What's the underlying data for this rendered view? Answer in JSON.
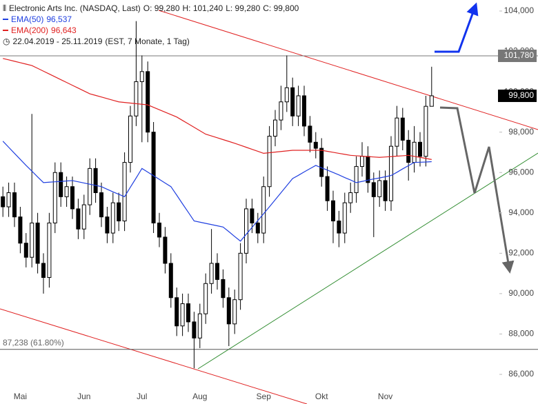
{
  "chart_data": {
    "type": "candlestick",
    "title": "Electronic Arts Inc. (NASDAQ, Last)",
    "ohlc_labels": [
      "O: 99,280",
      "H: 101,240",
      "L: 99,280",
      "C: 99,800"
    ],
    "date_range": "22.04.2019 - 25.11.2019",
    "period": "(EST, 7 Monate, 1 Tag)",
    "categories": [
      null,
      null,
      null,
      "Mai",
      null,
      null,
      null,
      null,
      null,
      null,
      null,
      null,
      null,
      null,
      "Jun",
      null,
      null,
      null,
      null,
      null,
      null,
      null,
      null,
      null,
      "Jul",
      null,
      null,
      null,
      null,
      null,
      null,
      null,
      null,
      null,
      "Aug",
      null,
      null,
      null,
      null,
      null,
      null,
      null,
      null,
      null,
      null,
      "Sep",
      null,
      null,
      null,
      null,
      null,
      null,
      null,
      null,
      null,
      "Okt",
      null,
      null,
      null,
      null,
      null,
      null,
      null,
      null,
      null,
      null,
      "Nov",
      null,
      null,
      null,
      null,
      null,
      null,
      null,
      null
    ],
    "candles": {
      "up_color": "#ffffff",
      "down_color": "#000000",
      "open": [
        94800,
        94300,
        95000,
        93800,
        92500,
        91800,
        93500,
        91500,
        90800,
        93500,
        96000,
        94800,
        95300,
        94200,
        93200,
        94400,
        96200,
        95000,
        93800,
        93000,
        94500,
        93600,
        96500,
        98800,
        100500,
        101000,
        98000,
        93500,
        92800,
        91500,
        89800,
        88400,
        89500,
        88600,
        87800,
        89000,
        90500,
        91500,
        90700,
        89800,
        88500,
        89700,
        92000,
        94200,
        93500,
        93000,
        95300,
        97800,
        98600,
        99500,
        100200,
        98800,
        99800,
        98300,
        97500,
        97200,
        95800,
        94600,
        93600,
        93000,
        94500,
        95000,
        96300,
        96800,
        95500,
        94800,
        95600,
        94600,
        97300,
        98700,
        97600,
        96500,
        97500,
        96800,
        99280
      ],
      "high": [
        95300,
        95500,
        95500,
        94300,
        93000,
        98900,
        94000,
        92000,
        94000,
        96500,
        96500,
        95800,
        95800,
        94700,
        94900,
        96700,
        96700,
        95500,
        94300,
        95000,
        95000,
        97000,
        99300,
        103500,
        101800,
        101500,
        98500,
        94000,
        93300,
        92000,
        90300,
        90000,
        90000,
        89100,
        89500,
        91000,
        93200,
        92000,
        91200,
        90300,
        90200,
        92500,
        94700,
        94700,
        94000,
        95800,
        98300,
        99100,
        100300,
        101800,
        100700,
        100300,
        100300,
        98800,
        98000,
        97700,
        96300,
        95100,
        94100,
        95000,
        95500,
        96800,
        97500,
        97300,
        96000,
        96100,
        96100,
        97800,
        99300,
        99200,
        98100,
        98300,
        98000,
        99800,
        101240
      ],
      "low": [
        93800,
        93800,
        93300,
        92000,
        91300,
        91300,
        91000,
        90000,
        90300,
        93000,
        94300,
        94300,
        93700,
        92700,
        92700,
        93900,
        94500,
        93300,
        92500,
        92500,
        93100,
        93100,
        96000,
        98300,
        97500,
        97500,
        93000,
        92300,
        91000,
        89300,
        87900,
        87900,
        88100,
        86300,
        87300,
        88500,
        90000,
        90200,
        89300,
        87400,
        88000,
        89200,
        91500,
        93000,
        92500,
        92500,
        94800,
        97300,
        98100,
        99000,
        98300,
        98300,
        97800,
        97000,
        96700,
        95300,
        94100,
        92500,
        92300,
        92500,
        94000,
        94500,
        95800,
        95000,
        92800,
        94300,
        94100,
        94100,
        96800,
        97100,
        95600,
        96000,
        96300,
        96300,
        99280
      ],
      "close": [
        94300,
        95000,
        93800,
        92500,
        91800,
        93500,
        91500,
        90800,
        93500,
        96000,
        94800,
        95300,
        94200,
        93200,
        94400,
        96200,
        95000,
        93800,
        93000,
        94500,
        93600,
        96500,
        98800,
        100500,
        101000,
        98000,
        93500,
        92800,
        91500,
        89800,
        88400,
        89500,
        88600,
        87800,
        89000,
        90500,
        91500,
        90700,
        89800,
        88500,
        89700,
        92000,
        94200,
        93500,
        93000,
        95300,
        97800,
        98600,
        99500,
        100200,
        98800,
        99800,
        98300,
        97500,
        97200,
        95800,
        94600,
        93600,
        93000,
        94500,
        95000,
        96300,
        96800,
        95500,
        94800,
        95600,
        94600,
        97300,
        98700,
        97600,
        96500,
        97500,
        96800,
        99280,
        99800
      ]
    },
    "series": [
      {
        "name": "EMA(50)",
        "value_label": "96,537",
        "color": "#1f3fe0",
        "values": [
          97550,
          97250,
          96950,
          96650,
          96350,
          96070,
          95780,
          95500,
          95520,
          95540,
          95560,
          95580,
          95600,
          95540,
          95480,
          95420,
          95360,
          95300,
          95170,
          95040,
          94920,
          94800,
          95270,
          95730,
          96200,
          96020,
          95840,
          95660,
          95480,
          95300,
          94880,
          94450,
          94030,
          93600,
          93540,
          93480,
          93420,
          93360,
          93300,
          93070,
          92830,
          92600,
          92940,
          93280,
          93620,
          93960,
          94300,
          94650,
          95000,
          95350,
          95700,
          95860,
          96030,
          96190,
          96350,
          96230,
          96120,
          96000,
          95880,
          95750,
          95630,
          95500,
          95560,
          95620,
          95680,
          95730,
          95790,
          95850,
          96010,
          96180,
          96340,
          96500,
          96510,
          96520,
          96537
        ]
      },
      {
        "name": "EMA(200)",
        "value_label": "96,643",
        "color": "#e02020",
        "values": [
          101650,
          101580,
          101510,
          101440,
          101370,
          101300,
          101160,
          101020,
          100880,
          100740,
          100600,
          100460,
          100320,
          100180,
          100040,
          99900,
          99820,
          99740,
          99660,
          99580,
          99500,
          99470,
          99440,
          99410,
          99380,
          99350,
          99230,
          99110,
          98990,
          98870,
          98750,
          98580,
          98410,
          98240,
          98070,
          97900,
          97810,
          97720,
          97630,
          97540,
          97450,
          97350,
          97250,
          97150,
          97050,
          96950,
          96980,
          97010,
          97040,
          97070,
          97100,
          97100,
          97100,
          97100,
          97100,
          97100,
          97050,
          97000,
          96950,
          96900,
          96850,
          96830,
          96810,
          96790,
          96770,
          96750,
          96770,
          96790,
          96810,
          96830,
          96850,
          96800,
          96750,
          96700,
          96643
        ]
      }
    ],
    "hlines": [
      {
        "value": 101780,
        "label": "101,780",
        "color": "#777777"
      },
      {
        "value": 87238,
        "label": "87,238 (61.80%)",
        "color": "#555555"
      }
    ],
    "last_price": {
      "value": 99800,
      "label": "99,800"
    },
    "ylim": [
      84532,
      104546
    ],
    "yticks": [
      {
        "value": 86000,
        "label": "86,000"
      },
      {
        "value": 88000,
        "label": "88,000"
      },
      {
        "value": 90000,
        "label": "90,000"
      },
      {
        "value": 92000,
        "label": "92,000"
      },
      {
        "value": 94000,
        "label": "94,000"
      },
      {
        "value": 96000,
        "label": "96,000"
      },
      {
        "value": 98000,
        "label": "98,000"
      },
      {
        "value": 100000,
        "label": "100,000"
      },
      {
        "value": 102000,
        "label": "102,000"
      },
      {
        "value": 104000,
        "label": "104,000"
      }
    ]
  }
}
